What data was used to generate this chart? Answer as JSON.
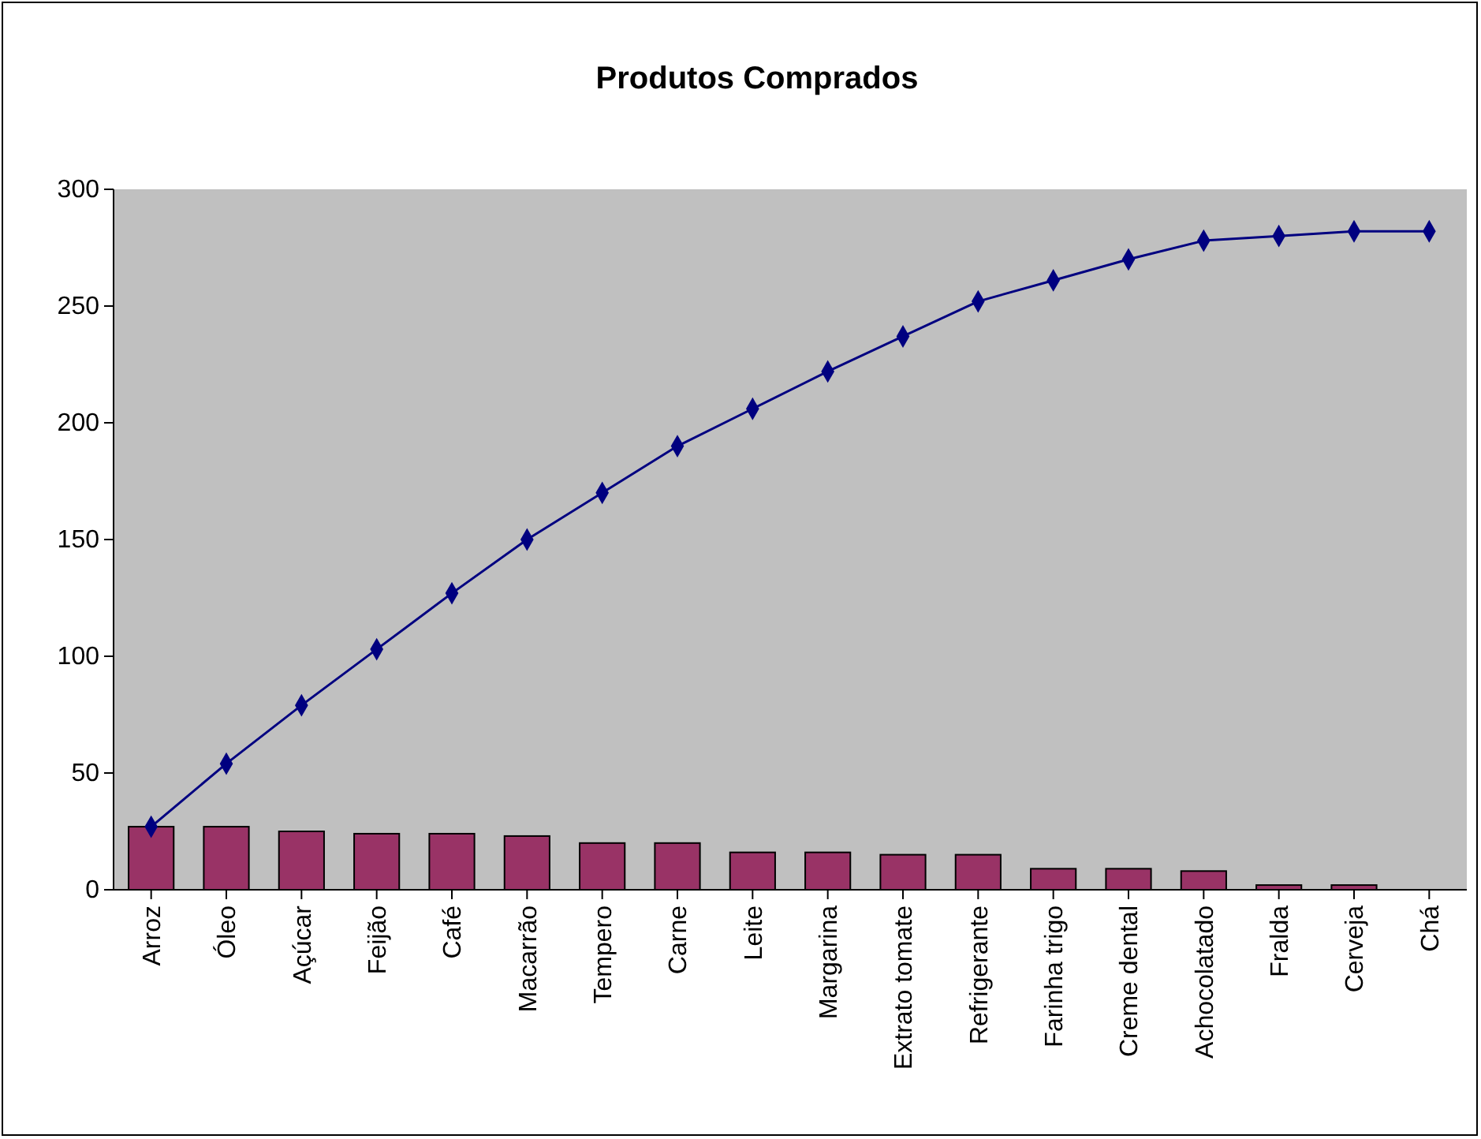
{
  "chart_data": {
    "type": "bar",
    "title": "Produtos Comprados",
    "categories": [
      "Arroz",
      "Óleo",
      "Açúcar",
      "Feijão",
      "Café",
      "Macarrão",
      "Tempero",
      "Carne",
      "Leite",
      "Margarina",
      "Extrato tomate",
      "Refrigerante",
      "Farinha trigo",
      "Creme dental",
      "Achocolatado",
      "Fralda",
      "Cerveja",
      "Chá"
    ],
    "series": [
      {
        "color": "#993366",
        "values": [
          27,
          27,
          25,
          24,
          24,
          23,
          20,
          20,
          16,
          16,
          15,
          15,
          9,
          9,
          8,
          2,
          2,
          0
        ]
      },
      {
        "type": "line",
        "color": "#000080",
        "marker": "diamond",
        "values": [
          27,
          54,
          79,
          103,
          127,
          150,
          170,
          190,
          206,
          222,
          237,
          252,
          261,
          270,
          278,
          280,
          282,
          282
        ]
      }
    ],
    "ylim": [
      0,
      300
    ],
    "yticks": [
      0,
      50,
      100,
      150,
      200,
      250,
      300
    ],
    "grid": false
  }
}
